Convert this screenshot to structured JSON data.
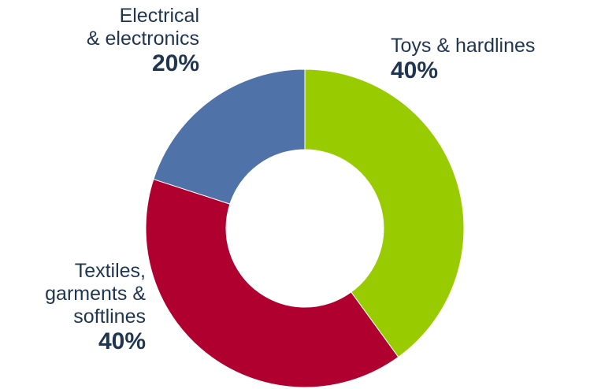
{
  "chart_data": {
    "type": "pie",
    "donut": true,
    "slices": [
      {
        "label": "Toys & hardlines",
        "value": 40,
        "value_label": "40%",
        "color": "#99cc00"
      },
      {
        "label": "Textiles,\ngarments &\nsoftlines",
        "value": 40,
        "value_label": "40%",
        "color": "#b0002f"
      },
      {
        "label": "Electrical\n& electronics",
        "value": 20,
        "value_label": "20%",
        "color": "#4f73a8"
      }
    ],
    "label_color": "#1f3550"
  }
}
